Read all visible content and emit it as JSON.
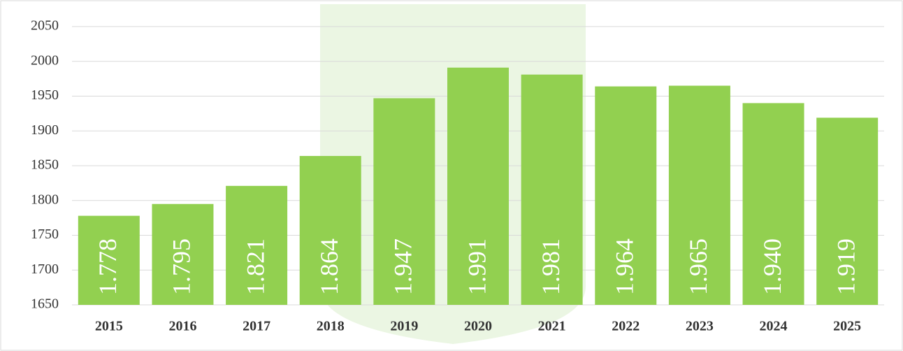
{
  "chart_data": {
    "type": "bar",
    "categories": [
      "2015",
      "2016",
      "2017",
      "2018",
      "2019",
      "2020",
      "2021",
      "2022",
      "2023",
      "2024",
      "2025"
    ],
    "values": [
      1778,
      1795,
      1821,
      1864,
      1947,
      1991,
      1981,
      1964,
      1965,
      1940,
      1919
    ],
    "value_labels": [
      "1.778",
      "1.795",
      "1.821",
      "1.864",
      "1.947",
      "1.991",
      "1.981",
      "1.964",
      "1.965",
      "1.940",
      "1.919"
    ],
    "color": "#92d050",
    "ylim": [
      1650,
      2050
    ],
    "yticks": [
      1650,
      1700,
      1750,
      1800,
      1850,
      1900,
      1950,
      2000,
      2050
    ],
    "grid": true
  }
}
